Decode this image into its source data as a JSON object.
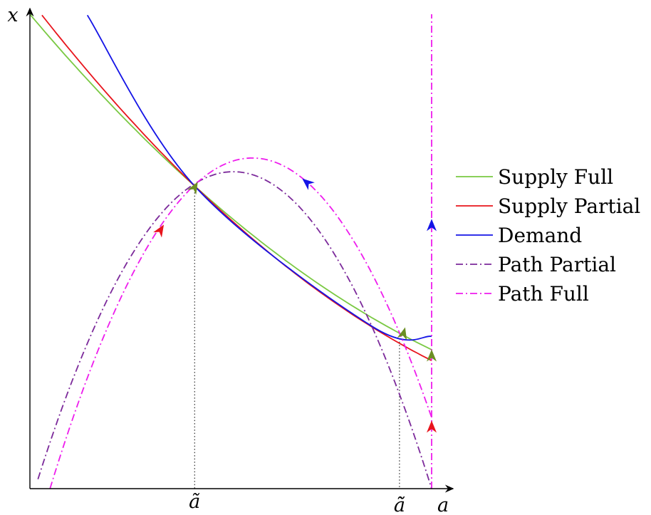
{
  "chart_data": {
    "type": "line",
    "xlabel": "a",
    "ylabel": "x",
    "ticks": [
      {
        "name": "a-tilde",
        "label": "ã",
        "at": 0.41
      },
      {
        "name": "a-double-tilde",
        "label": "ã̃",
        "at": 0.92
      }
    ],
    "xlim": [
      0,
      1
    ],
    "ylim": [
      0,
      1
    ],
    "series": [
      {
        "name": "Supply Full",
        "color": "#7ac943",
        "style": "solid",
        "x": [
          0.0,
          0.41,
          1.0
        ],
        "y": [
          1.0,
          0.638,
          0.293
        ]
      },
      {
        "name": "Supply Partial",
        "color": "#e8141c",
        "style": "solid",
        "x": [
          0.03,
          0.41,
          1.0
        ],
        "y": [
          0.998,
          0.638,
          0.27
        ]
      },
      {
        "name": "Demand",
        "color": "#1414e6",
        "style": "solid",
        "x": [
          0.143,
          0.41,
          0.85,
          1.0
        ],
        "y": [
          0.998,
          0.638,
          0.343,
          0.321
        ]
      },
      {
        "name": "Path Partial",
        "color": "#7c2a9b",
        "style": "dashdot",
        "x": [
          0.02,
          0.5,
          1.0
        ],
        "y": [
          0.02,
          0.668,
          0.0
        ]
      },
      {
        "name": "Path Full",
        "color": "#ee1ced",
        "style": "dashdot",
        "x": [
          0.05,
          0.555,
          1.0
        ],
        "y": [
          0.0,
          0.697,
          0.15
        ]
      }
    ],
    "vertical_line": {
      "color": "#ee1ced",
      "x": 1.0,
      "y": [
        0.0,
        1.0
      ]
    },
    "legend": "right"
  },
  "colors": {
    "axis": "#000000",
    "olive_arrow": "#6b8e23",
    "red_arrow": "#e8141c",
    "blue_arrow": "#1414e6"
  }
}
